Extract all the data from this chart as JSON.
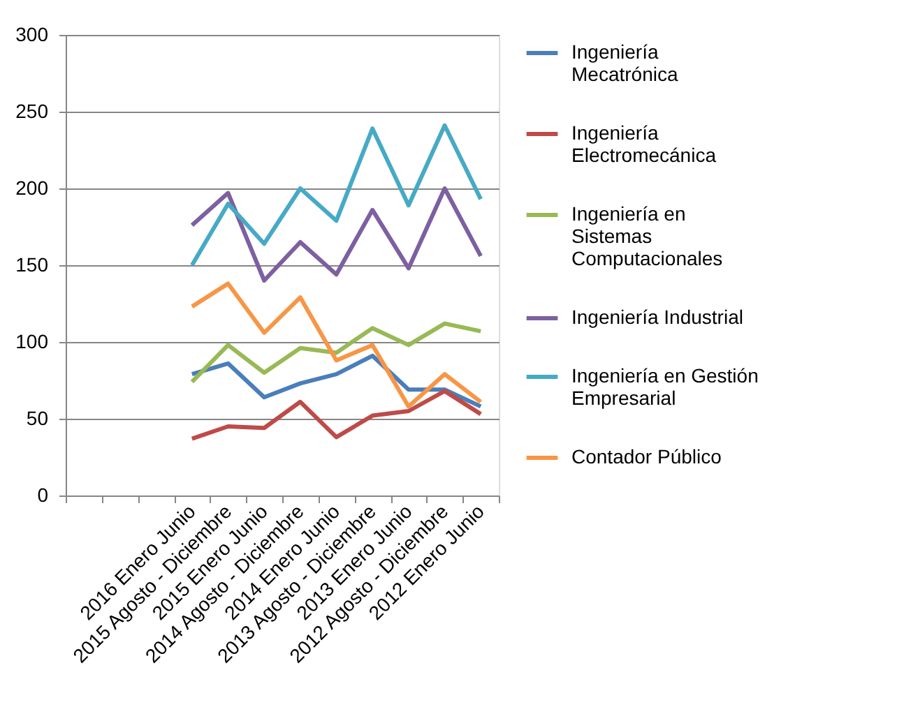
{
  "chart_data": {
    "type": "line",
    "categories": [
      null,
      null,
      null,
      "2016 Enero  Junio",
      "2015 Agosto - Diciembre",
      "2015 Enero Junio",
      "2014 Agosto - Diciembre",
      "2014 Enero Junio",
      "2013 Agosto - Diciembre",
      "2013 Enero Junio",
      "2012 Agosto - Diciembre",
      "2012 Enero Junio"
    ],
    "series": [
      {
        "name": "Ingeniería Mecatrónica",
        "color": "#4a7ebb",
        "values": [
          null,
          null,
          null,
          79,
          86,
          64,
          73,
          79,
          91,
          69,
          69,
          58
        ]
      },
      {
        "name": "Ingeniería Electromecánica",
        "color": "#be4b48",
        "values": [
          null,
          null,
          null,
          37,
          45,
          44,
          61,
          38,
          52,
          55,
          68,
          53
        ]
      },
      {
        "name": "Ingeniería en Sistemas Computacionales",
        "color": "#98b954",
        "values": [
          null,
          null,
          null,
          74,
          98,
          80,
          96,
          93,
          109,
          98,
          112,
          107
        ]
      },
      {
        "name": "Ingeniería Industrial",
        "color": "#7d60a0",
        "values": [
          null,
          null,
          null,
          176,
          197,
          140,
          165,
          144,
          186,
          148,
          200,
          156
        ]
      },
      {
        "name": "Ingeniería en Gestión Empresarial",
        "color": "#46aac5",
        "values": [
          null,
          null,
          null,
          150,
          190,
          164,
          200,
          179,
          239,
          189,
          241,
          193
        ]
      },
      {
        "name": "Contador Público",
        "color": "#f79646",
        "values": [
          null,
          null,
          null,
          123,
          138,
          106,
          129,
          88,
          98,
          58,
          79,
          61
        ]
      }
    ],
    "ylim": [
      0,
      300
    ],
    "yticks": [
      0,
      50,
      100,
      150,
      200,
      250,
      300
    ],
    "grid": "y",
    "legend": "right",
    "marker": "none",
    "line_style": "solid"
  }
}
